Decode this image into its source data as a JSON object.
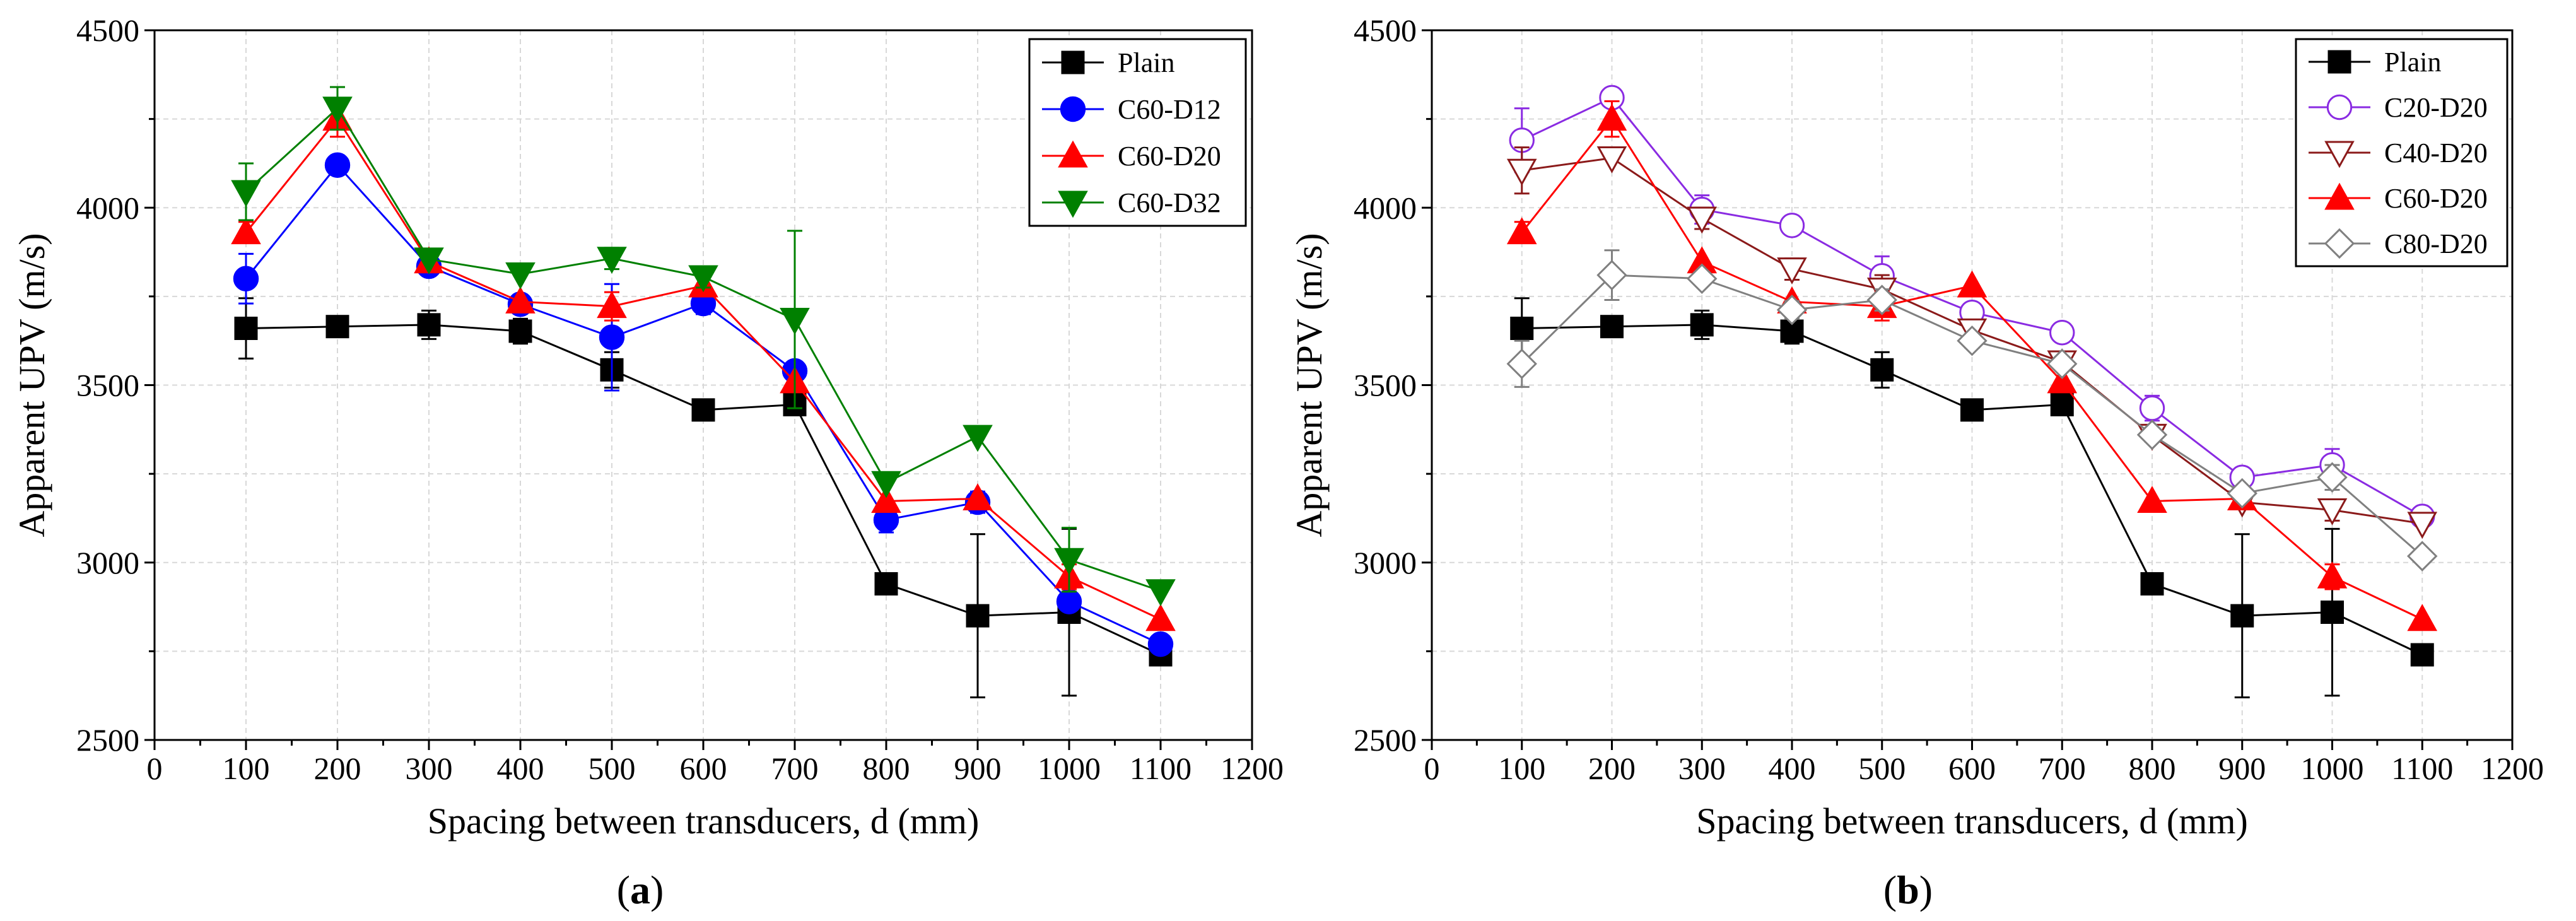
{
  "figure": {
    "panels": [
      {
        "label_open": "(",
        "label_letter": "a",
        "label_close": ")"
      },
      {
        "label_open": "(",
        "label_letter": "b",
        "label_close": ")"
      }
    ]
  },
  "chart_data": [
    {
      "type": "line",
      "panel": "a",
      "xlabel": "Spacing between transducers, d (mm)",
      "ylabel": "Apparent UPV (m/s)",
      "xlim": [
        0,
        1200
      ],
      "ylim": [
        2500,
        4500
      ],
      "x_ticks": [
        "0",
        "100",
        "200",
        "300",
        "400",
        "500",
        "600",
        "700",
        "800",
        "900",
        "1000",
        "1100",
        "1200"
      ],
      "y_ticks": [
        "2500",
        "3000",
        "3500",
        "4000",
        "4500"
      ],
      "grid": true,
      "legend_position": "top-right",
      "x": [
        100,
        200,
        300,
        400,
        500,
        600,
        700,
        800,
        900,
        1000,
        1100
      ],
      "series": [
        {
          "name": "Plain",
          "color": "#000000",
          "marker": "square",
          "filled": true,
          "values": [
            3660,
            3665,
            3670,
            3652,
            3543,
            3430,
            3445,
            2940,
            2850,
            2860,
            2740
          ],
          "errors": [
            85,
            25,
            40,
            35,
            50,
            0,
            20,
            25,
            230,
            235,
            0
          ]
        },
        {
          "name": "C60-D12",
          "color": "#0000ff",
          "marker": "circle",
          "filled": true,
          "values": [
            3800,
            4120,
            3835,
            3728,
            3635,
            3730,
            3540,
            3120,
            3170,
            2890,
            2770
          ],
          "errors": [
            70,
            0,
            0,
            25,
            150,
            30,
            20,
            35,
            30,
            20,
            0
          ]
        },
        {
          "name": "C60-D20",
          "color": "#ff0000",
          "marker": "triangle-up",
          "filled": true,
          "values": [
            3930,
            4250,
            3848,
            3735,
            3722,
            3780,
            3510,
            3173,
            3180,
            2960,
            2840
          ],
          "errors": [
            30,
            50,
            0,
            0,
            40,
            0,
            0,
            0,
            0,
            35,
            0
          ]
        },
        {
          "name": "C60-D32",
          "color": "#008000",
          "marker": "triangle-down",
          "filled": true,
          "values": [
            4045,
            4280,
            3855,
            3813,
            3857,
            3805,
            3685,
            3225,
            3355,
            3008,
            2920
          ],
          "errors": [
            80,
            60,
            0,
            0,
            30,
            30,
            250,
            0,
            0,
            90,
            0
          ]
        }
      ]
    },
    {
      "type": "line",
      "panel": "b",
      "xlabel": "Spacing between transducers, d (mm)",
      "ylabel": "Apparent UPV (m/s)",
      "xlim": [
        0,
        1200
      ],
      "ylim": [
        2500,
        4500
      ],
      "x_ticks": [
        "0",
        "100",
        "200",
        "300",
        "400",
        "500",
        "600",
        "700",
        "800",
        "900",
        "1000",
        "1100",
        "1200"
      ],
      "y_ticks": [
        "2500",
        "3000",
        "3500",
        "4000",
        "4500"
      ],
      "grid": true,
      "legend_position": "top-right",
      "x": [
        100,
        200,
        300,
        400,
        500,
        600,
        700,
        800,
        900,
        1000,
        1100
      ],
      "series": [
        {
          "name": "Plain",
          "color": "#000000",
          "marker": "square",
          "filled": true,
          "values": [
            3660,
            3665,
            3670,
            3652,
            3543,
            3430,
            3445,
            2940,
            2850,
            2860,
            2740
          ],
          "errors": [
            85,
            25,
            40,
            35,
            50,
            0,
            20,
            25,
            230,
            235,
            0
          ]
        },
        {
          "name": "C20-D20",
          "color": "#8a2be2",
          "marker": "circle",
          "filled": false,
          "values": [
            4190,
            4310,
            3995,
            3950,
            3808,
            3705,
            3648,
            3435,
            3240,
            3275,
            3130
          ],
          "errors": [
            90,
            15,
            40,
            20,
            55,
            20,
            20,
            35,
            20,
            45,
            0
          ]
        },
        {
          "name": "C40-D20",
          "color": "#8b1a1a",
          "marker": "triangle-down",
          "filled": false,
          "values": [
            4105,
            4140,
            3970,
            3827,
            3770,
            3655,
            3565,
            3358,
            3170,
            3148,
            3110
          ],
          "errors": [
            65,
            0,
            30,
            30,
            40,
            20,
            20,
            0,
            20,
            30,
            0
          ]
        },
        {
          "name": "C60-D20",
          "color": "#ff0000",
          "marker": "triangle-up",
          "filled": true,
          "values": [
            3930,
            4250,
            3848,
            3735,
            3722,
            3780,
            3510,
            3173,
            3180,
            2960,
            2840
          ],
          "errors": [
            30,
            50,
            0,
            0,
            40,
            0,
            0,
            0,
            0,
            35,
            0
          ]
        },
        {
          "name": "C80-D20",
          "color": "#808080",
          "marker": "diamond",
          "filled": false,
          "values": [
            3560,
            3810,
            3800,
            3712,
            3740,
            3625,
            3560,
            3360,
            3195,
            3240,
            3018
          ],
          "errors": [
            65,
            70,
            0,
            25,
            30,
            20,
            20,
            20,
            20,
            35,
            0
          ]
        }
      ]
    }
  ]
}
